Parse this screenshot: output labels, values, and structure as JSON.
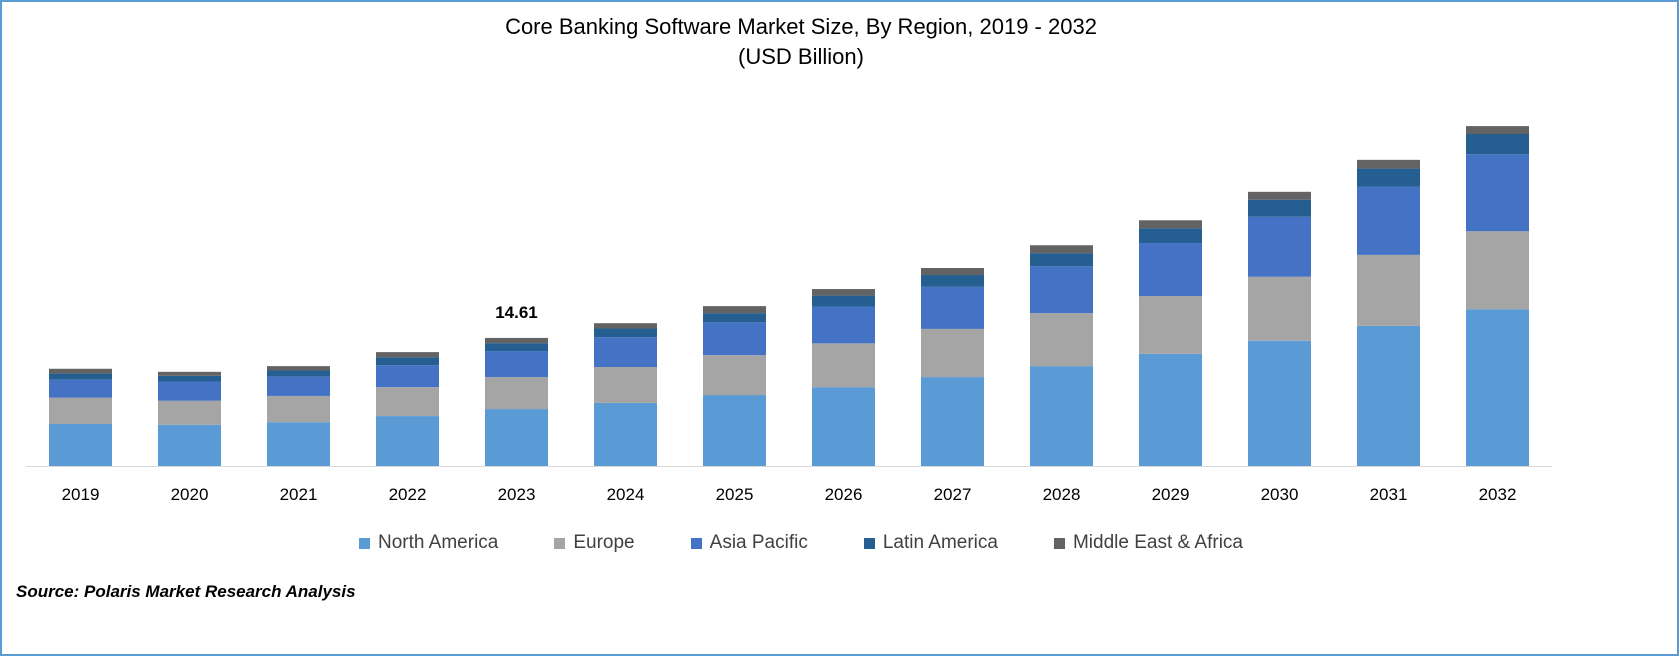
{
  "chart_data": {
    "type": "bar",
    "stacked": true,
    "title": "Core Banking Software Market Size, By Region, 2019 - 2032",
    "subtitle": "(USD Billion)",
    "categories": [
      "2019",
      "2020",
      "2021",
      "2022",
      "2023",
      "2024",
      "2025",
      "2026",
      "2027",
      "2028",
      "2029",
      "2030",
      "2031",
      "2032"
    ],
    "series": [
      {
        "name": "North America",
        "color": "#5b9bd5",
        "values": [
          4.8,
          4.7,
          5.0,
          5.7,
          6.5,
          7.2,
          8.1,
          9.0,
          10.15,
          11.4,
          12.8,
          14.3,
          16.0,
          17.9
        ]
      },
      {
        "name": "Europe",
        "color": "#a5a5a5",
        "values": [
          3.0,
          2.75,
          3.0,
          3.3,
          3.65,
          4.1,
          4.55,
          5.0,
          5.5,
          6.05,
          6.6,
          7.3,
          8.1,
          8.9
        ]
      },
      {
        "name": "Asia Pacific",
        "color": "#4472c4",
        "values": [
          2.05,
          2.2,
          2.2,
          2.5,
          2.97,
          3.4,
          3.75,
          4.2,
          4.8,
          5.35,
          6.05,
          6.85,
          7.8,
          8.8
        ]
      },
      {
        "name": "Latin America",
        "color": "#255e91",
        "values": [
          0.7,
          0.65,
          0.7,
          0.9,
          0.9,
          1.0,
          1.05,
          1.25,
          1.35,
          1.5,
          1.7,
          1.95,
          2.05,
          2.3
        ]
      },
      {
        "name": "Middle East & Africa",
        "color": "#636363",
        "values": [
          0.55,
          0.45,
          0.5,
          0.6,
          0.6,
          0.6,
          0.8,
          0.75,
          0.8,
          0.9,
          0.9,
          0.9,
          1.0,
          0.9
        ]
      }
    ],
    "annotations": [
      {
        "category": "2023",
        "text": "14.61"
      }
    ],
    "xlabel": "",
    "ylabel": "",
    "ylim": [
      0,
      40
    ],
    "grid": false,
    "y_axis_visible": false,
    "legend_position": "bottom"
  },
  "source": "Source: Polaris Market Research Analysis"
}
